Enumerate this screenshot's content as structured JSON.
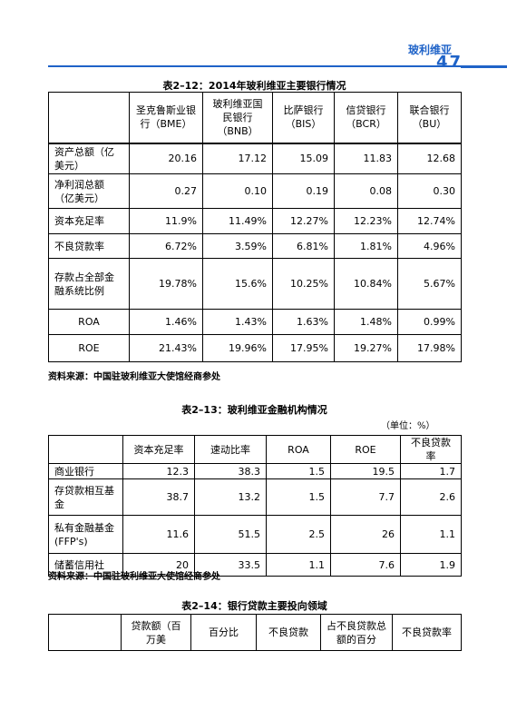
{
  "header": {
    "section_title": "玻利维亚",
    "page_number": "47"
  },
  "table1": {
    "caption": "表2–12：2014年玻利维亚主要银行情况",
    "columns": [
      "圣克鲁斯业银行（BME）",
      "玻利维亚国民银行（BNB）",
      "比萨银行（BIS）",
      "信贷银行（BCR）",
      "联合银行（BU）"
    ],
    "rows": [
      {
        "label": "资产总额（亿美元）",
        "values": [
          "20.16",
          "17.12",
          "15.09",
          "11.83",
          "12.68"
        ]
      },
      {
        "label": "净利润总额（亿美元）",
        "values": [
          "0.27",
          "0.10",
          "0.19",
          "0.08",
          "0.30"
        ]
      },
      {
        "label": "资本充足率",
        "values": [
          "11.9%",
          "11.49%",
          "12.27%",
          "12.23%",
          "12.74%"
        ]
      },
      {
        "label": "不良贷款率",
        "values": [
          "6.72%",
          "3.59%",
          "6.81%",
          "1.81%",
          "4.96%"
        ]
      },
      {
        "label": "存款占全部金融系统比例",
        "values": [
          "19.78%",
          "15.6%",
          "10.25%",
          "10.84%",
          "5.67%"
        ]
      },
      {
        "label": "ROA",
        "values": [
          "1.46%",
          "1.43%",
          "1.63%",
          "1.48%",
          "0.99%"
        ]
      },
      {
        "label": "ROE",
        "values": [
          "21.43%",
          "19.96%",
          "17.95%",
          "19.27%",
          "17.98%"
        ]
      }
    ],
    "source": "资料来源：中国驻玻利维亚大使馆经商参处"
  },
  "table2": {
    "caption": "表2–13：玻利维亚金融机构情况",
    "unit": "（单位：%）",
    "columns": [
      "资本充足率",
      "速动比率",
      "ROA",
      "ROE",
      "不良贷款率"
    ],
    "rows": [
      {
        "label": "商业银行",
        "values": [
          "12.3",
          "38.3",
          "1.5",
          "19.5",
          "1.7"
        ]
      },
      {
        "label": "存贷款相互基金",
        "values": [
          "38.7",
          "13.2",
          "1.5",
          "7.7",
          "2.6"
        ]
      },
      {
        "label": "私有金融基金(FFP's)",
        "values": [
          "11.6",
          "51.5",
          "2.5",
          "26",
          "1.1"
        ]
      },
      {
        "label": "储蓄信用社",
        "values": [
          "20",
          "33.5",
          "1.1",
          "7.6",
          "1.9"
        ]
      }
    ],
    "source": "资料来源：中国驻玻利维亚大使馆经商参处"
  },
  "table3": {
    "caption": "表2–14：银行贷款主要投向领域",
    "columns": [
      "贷款额（百万美",
      "百分比",
      "不良贷款",
      "占不良贷款总额的百分",
      "不良贷款率"
    ]
  }
}
